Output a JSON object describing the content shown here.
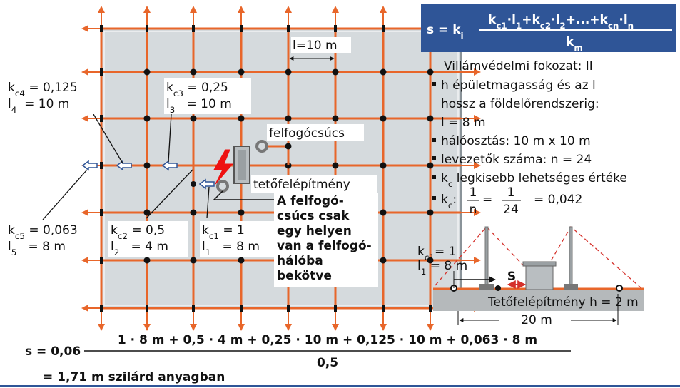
{
  "formula": {
    "lhs": [
      "s = k",
      "i"
    ],
    "numerator": [
      "k",
      "c1",
      "·l",
      "1",
      "+k",
      "c2",
      "·l",
      "2",
      "+...+k",
      "cn",
      "·l",
      "n"
    ],
    "denominator": [
      "k",
      "m"
    ]
  },
  "grid_spacing": "l=10 m",
  "info": {
    "title": "Villámvédelmi fokozat: II",
    "items": [
      {
        "lines": [
          [
            "h épületmagasság és az l"
          ],
          [
            "hossz a földelőrendszerig:"
          ],
          [
            "l = 8 m"
          ]
        ]
      },
      {
        "lines": [
          [
            "hálóosztás: 10 m x 10 m"
          ]
        ]
      },
      {
        "lines": [
          [
            "levezetők száma: n = 24"
          ]
        ]
      },
      {
        "lines": [
          [
            "k",
            "c",
            " legkisebb lehetséges értéke"
          ]
        ]
      }
    ],
    "last": {
      "parts": [
        "k",
        "c",
        ":"
      ],
      "fraction1": [
        "1",
        "n"
      ],
      "eq": "=",
      "fraction2": [
        "1",
        "24"
      ],
      "result": "= 0,042"
    }
  },
  "grid_labels": [
    {
      "lines": [
        [
          "k",
          "c4",
          " = 0,125"
        ],
        [
          "l",
          "4",
          "  = 10 m"
        ]
      ]
    },
    {
      "lines": [
        [
          "k",
          "c3",
          " = 0,25"
        ],
        [
          "l",
          "3",
          "   = 10 m"
        ]
      ]
    },
    {
      "lines": [
        [
          "k",
          "c5",
          " = 0,063"
        ],
        [
          "l",
          "5",
          "   = 8 m"
        ]
      ]
    },
    {
      "lines": [
        [
          "k",
          "c2",
          " = 0,5"
        ],
        [
          "l",
          "2",
          "   = 4 m"
        ]
      ]
    },
    {
      "lines": [
        [
          "k",
          "c1",
          " = 1"
        ],
        [
          "l",
          "1",
          "   = 8 m"
        ]
      ]
    }
  ],
  "air_terminal": "felfogócsúcs",
  "roof_structure": "tetőfelépítmény",
  "note": [
    "A felfogó-",
    "csúcs csak",
    "egy helyen",
    "van a felfogó-",
    "hálóba",
    "bekötve"
  ],
  "side_view": {
    "labels": [
      [
        "k",
        "c1",
        "= 1"
      ],
      [
        "l",
        "1",
        " = 8 m"
      ]
    ],
    "s": "S",
    "roof": "Tetőfelépítmény h = 2 m",
    "width": "20 m"
  },
  "calculation": {
    "lhs": "s = 0,06",
    "numerator": "1 · 8 m + 0,5 · 4 m + 0,25 · 10 m + 0,125 · 10 m + 0,063 · 8 m",
    "denominator": "0,5",
    "result": "= 1,71 m szilárd anyagban"
  }
}
